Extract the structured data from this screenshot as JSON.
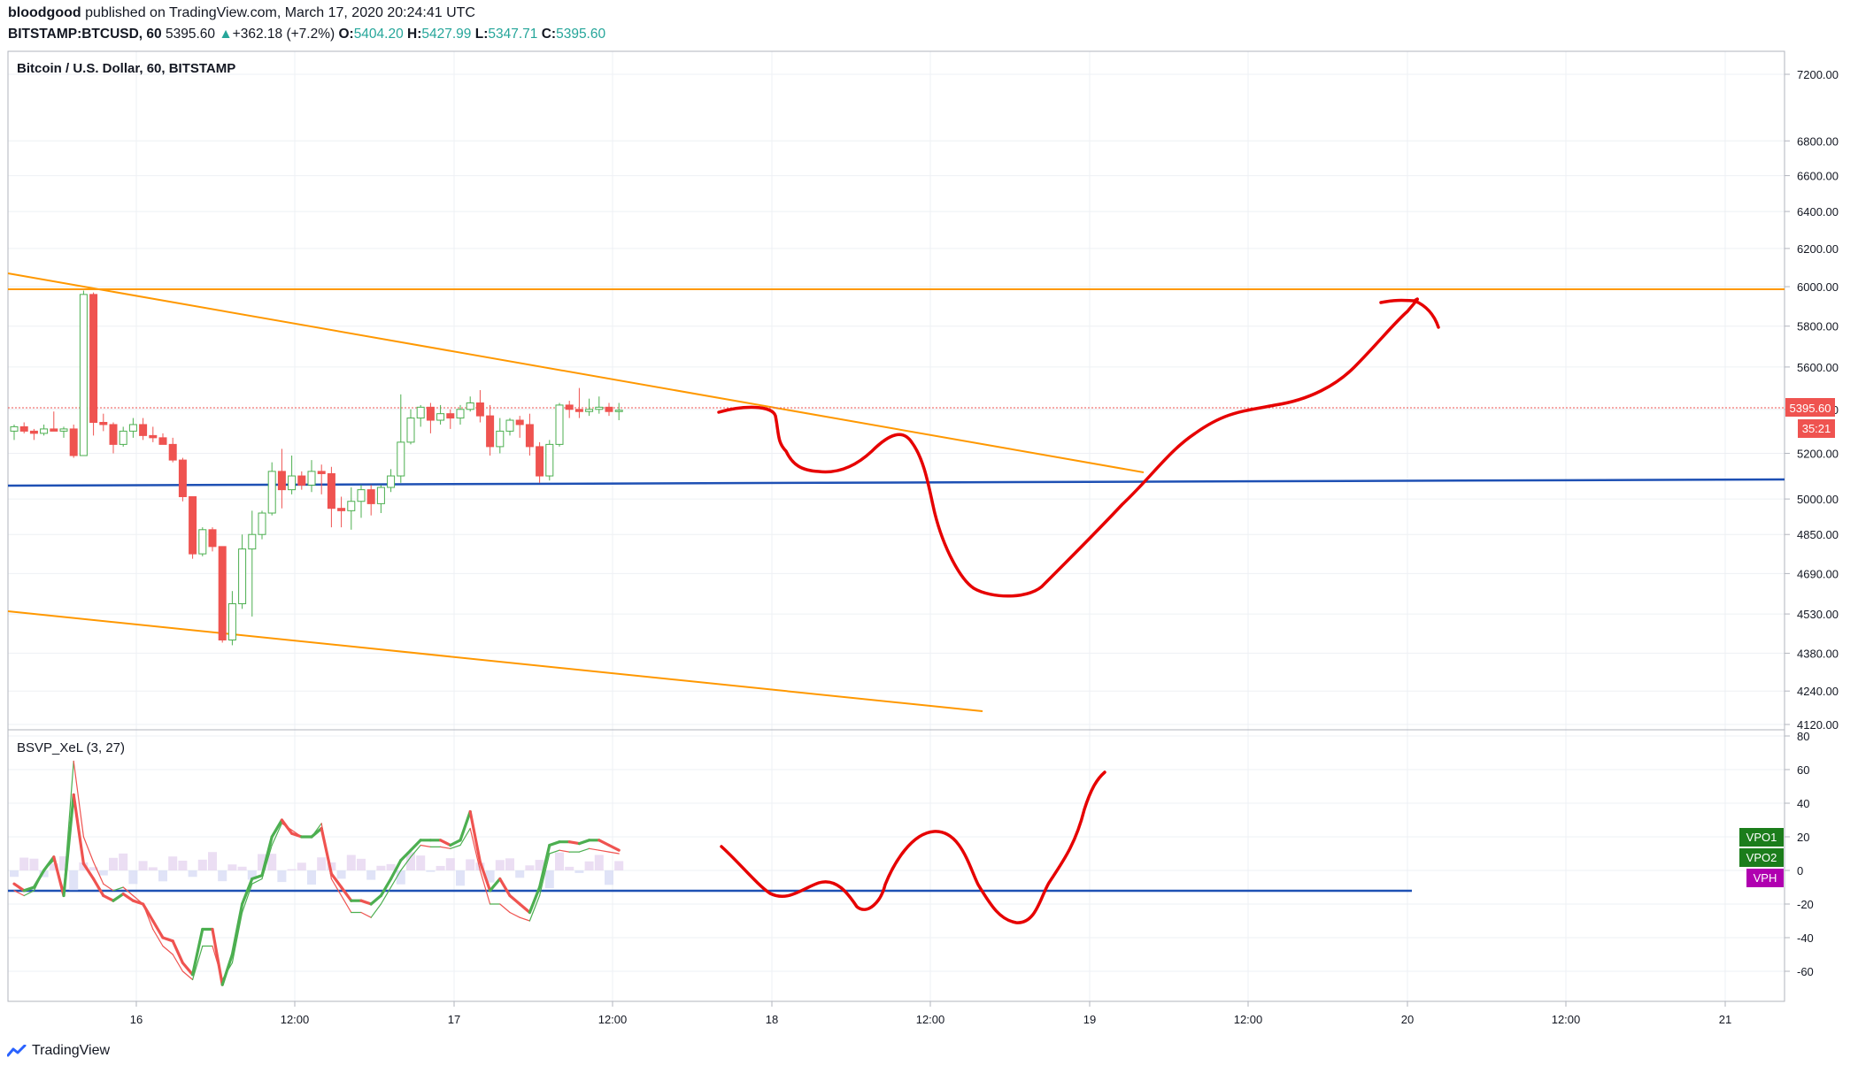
{
  "header": {
    "author": "bloodgood",
    "published_text": "published on TradingView.com, March 17, 2020 20:24:41 UTC",
    "symbol": "BITSTAMP:BTCUSD, 60",
    "last": "5395.60",
    "change_arrow": "▲",
    "change": "+362.18 (+7.2%)",
    "o_label": "O:",
    "o_value": "5404.20",
    "h_label": "H:",
    "h_value": "5427.99",
    "l_label": "L:",
    "l_value": "5347.71",
    "c_label": "C:",
    "c_value": "5395.60"
  },
  "footer": {
    "brand": "TradingView",
    "logo_icon": "tradingview-logo-icon"
  },
  "colors": {
    "up": "#26a69a",
    "up_fill": "#ffffff",
    "up_border": "#4caf50",
    "down": "#ef5350",
    "orange": "#ff9800",
    "blue": "#1e50b4",
    "red_draw": "#e60000",
    "vpo": "#1b7d1b",
    "vph": "#b000b0"
  },
  "chart_data": [
    {
      "type": "candlestick",
      "title": "Bitcoin / U.S. Dollar, 60, BITSTAMP",
      "price_ticks": [
        "7200.00",
        "6800.00",
        "6600.00",
        "6400.00",
        "6200.00",
        "6000.00",
        "5800.00",
        "5600.00",
        "5400.00",
        "5200.00",
        "5000.00",
        "4850.00",
        "4690.00",
        "4530.00",
        "4380.00",
        "4240.00",
        "4120.00"
      ],
      "time_ticks": [
        "16",
        "12:00",
        "17",
        "12:00",
        "18",
        "12:00",
        "19",
        "12:00",
        "20",
        "12:00",
        "21"
      ],
      "last_price_label": "5395.60",
      "countdown_label": "35:21",
      "candles": [
        [
          5300,
          5330,
          5260,
          5320
        ],
        [
          5320,
          5340,
          5290,
          5300
        ],
        [
          5300,
          5310,
          5260,
          5290
        ],
        [
          5290,
          5330,
          5280,
          5310
        ],
        [
          5310,
          5390,
          5300,
          5300
        ],
        [
          5300,
          5320,
          5270,
          5310
        ],
        [
          5310,
          5330,
          5180,
          5190
        ],
        [
          5190,
          5980,
          5190,
          5960
        ],
        [
          5960,
          5970,
          5280,
          5340
        ],
        [
          5340,
          5380,
          5300,
          5330
        ],
        [
          5330,
          5340,
          5200,
          5240
        ],
        [
          5240,
          5320,
          5230,
          5300
        ],
        [
          5300,
          5360,
          5270,
          5330
        ],
        [
          5330,
          5360,
          5260,
          5280
        ],
        [
          5280,
          5320,
          5250,
          5270
        ],
        [
          5270,
          5290,
          5240,
          5240
        ],
        [
          5240,
          5270,
          5160,
          5170
        ],
        [
          5170,
          5180,
          4990,
          5010
        ],
        [
          5010,
          5010,
          4750,
          4770
        ],
        [
          4770,
          4880,
          4760,
          4870
        ],
        [
          4870,
          4880,
          4780,
          4800
        ],
        [
          4800,
          4800,
          4420,
          4430
        ],
        [
          4430,
          4620,
          4410,
          4570
        ],
        [
          4570,
          4850,
          4550,
          4790
        ],
        [
          4790,
          4950,
          4520,
          4850
        ],
        [
          4850,
          4950,
          4830,
          4940
        ],
        [
          4940,
          5160,
          4930,
          5120
        ],
        [
          5120,
          5220,
          4960,
          5040
        ],
        [
          5040,
          5190,
          5020,
          5100
        ],
        [
          5100,
          5120,
          5040,
          5060
        ],
        [
          5060,
          5170,
          5030,
          5120
        ],
        [
          5120,
          5150,
          5020,
          5110
        ],
        [
          5110,
          5140,
          4880,
          4960
        ],
        [
          4960,
          5010,
          4880,
          4950
        ],
        [
          4950,
          5050,
          4870,
          4990
        ],
        [
          4990,
          5060,
          4920,
          5040
        ],
        [
          5040,
          5060,
          4930,
          4980
        ],
        [
          4980,
          5060,
          4940,
          5050
        ],
        [
          5050,
          5130,
          5030,
          5100
        ],
        [
          5100,
          5470,
          5070,
          5250
        ],
        [
          5250,
          5400,
          5240,
          5360
        ],
        [
          5360,
          5420,
          5320,
          5410
        ],
        [
          5410,
          5430,
          5290,
          5350
        ],
        [
          5350,
          5420,
          5330,
          5380
        ],
        [
          5380,
          5400,
          5310,
          5360
        ],
        [
          5360,
          5420,
          5330,
          5400
        ],
        [
          5400,
          5460,
          5390,
          5430
        ],
        [
          5430,
          5490,
          5340,
          5370
        ],
        [
          5370,
          5420,
          5190,
          5230
        ],
        [
          5230,
          5360,
          5200,
          5300
        ],
        [
          5300,
          5360,
          5280,
          5350
        ],
        [
          5350,
          5370,
          5270,
          5330
        ],
        [
          5330,
          5380,
          5190,
          5230
        ],
        [
          5230,
          5250,
          5070,
          5100
        ],
        [
          5100,
          5260,
          5080,
          5240
        ],
        [
          5240,
          5430,
          5230,
          5420
        ],
        [
          5420,
          5440,
          5360,
          5400
        ],
        [
          5400,
          5500,
          5360,
          5390
        ],
        [
          5390,
          5450,
          5370,
          5400
        ],
        [
          5400,
          5460,
          5380,
          5410
        ],
        [
          5410,
          5430,
          5370,
          5390
        ],
        [
          5390,
          5430,
          5350,
          5396
        ]
      ]
    },
    {
      "type": "line",
      "title": "BSVP_XeL (3, 27)",
      "y_ticks": [
        "80",
        "60",
        "40",
        "20",
        "0",
        "-20",
        "-40",
        "-60"
      ],
      "badges": [
        "VPO1",
        "VPO2",
        "VPH"
      ],
      "series": [
        {
          "name": "VPO1",
          "values": [
            -8,
            -12,
            -10,
            0,
            8,
            -15,
            45,
            4,
            -5,
            -15,
            -18,
            -14,
            -18,
            -20,
            -30,
            -40,
            -42,
            -55,
            -62,
            -35,
            -35,
            -68,
            -50,
            -20,
            -5,
            -3,
            20,
            30,
            22,
            20,
            20,
            25,
            -2,
            -10,
            -18,
            -18,
            -20,
            -15,
            -5,
            6,
            12,
            18,
            18,
            18,
            15,
            18,
            35,
            5,
            -12,
            -5,
            -15,
            -20,
            -25,
            -10,
            15,
            17,
            17,
            16,
            18,
            18,
            15,
            12
          ]
        },
        {
          "name": "VPO2",
          "values": [
            -12,
            -15,
            -12,
            0,
            6,
            -12,
            65,
            20,
            5,
            -8,
            -12,
            -10,
            -15,
            -20,
            -35,
            -45,
            -50,
            -60,
            -65,
            -45,
            -45,
            -65,
            -55,
            -25,
            -8,
            -5,
            15,
            28,
            24,
            20,
            20,
            28,
            -5,
            -15,
            -25,
            -25,
            -28,
            -20,
            -10,
            0,
            8,
            15,
            14,
            14,
            13,
            15,
            25,
            0,
            -20,
            -20,
            -25,
            -28,
            -30,
            -15,
            10,
            12,
            11,
            11,
            13,
            12,
            11,
            10
          ]
        }
      ]
    }
  ]
}
